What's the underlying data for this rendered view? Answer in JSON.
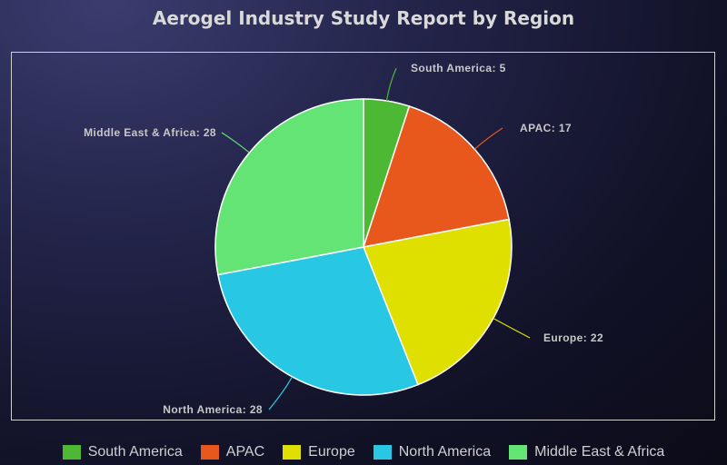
{
  "chart_data": {
    "type": "pie",
    "title": "Aerogel Industry Study Report by Region",
    "slices": [
      {
        "label": "South America",
        "value": 5,
        "color": "#4cb833"
      },
      {
        "label": "APAC",
        "value": 17,
        "color": "#e8571c"
      },
      {
        "label": "Europe",
        "value": 22,
        "color": "#dfe000"
      },
      {
        "label": "North America",
        "value": 28,
        "color": "#28c8e4"
      },
      {
        "label": "Middle East & Africa",
        "value": 28,
        "color": "#64e474"
      }
    ],
    "data_labels": [
      "South America: 5",
      "APAC: 17",
      "Europe: 22",
      "North America: 28",
      "Middle East & Africa: 28"
    ],
    "legend_placement": "bottom"
  }
}
